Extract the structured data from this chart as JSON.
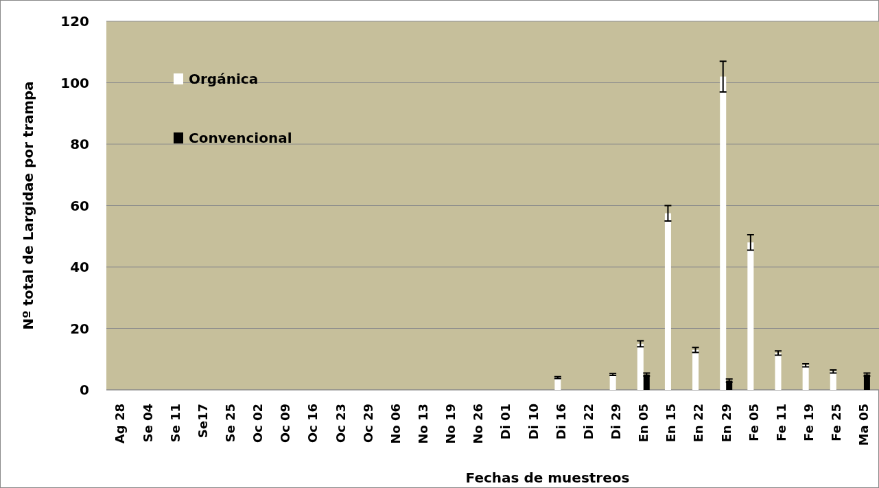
{
  "chart_data": {
    "type": "bar",
    "xlabel": "Fechas de muestreos",
    "ylabel": "Nº total de Largidae por trampa",
    "categories": [
      "Ag 28",
      "Se 04",
      "Se 11",
      "Se17",
      "Se 25",
      "Oc 02",
      "Oc 09",
      "Oc 16",
      "Oc 23",
      "Oc 29",
      "No 06",
      "No 13",
      "No 19",
      "No 26",
      "Di 01",
      "Di 10",
      "Di 16",
      "Di 22",
      "Di 29",
      "En 05",
      "En 15",
      "En 22",
      "En 29",
      "Fe 05",
      "Fe 11",
      "Fe 19",
      "Fe 25",
      "Ma 05"
    ],
    "series": [
      {
        "name": "Orgánica",
        "color": "#ffffff",
        "values": [
          0,
          0,
          0,
          0,
          0,
          0,
          0,
          0,
          0,
          0,
          0,
          0,
          0,
          0,
          0,
          0,
          4,
          0,
          5,
          15,
          57.5,
          13,
          102,
          48,
          12,
          8,
          6,
          0
        ],
        "errors": [
          null,
          null,
          null,
          null,
          null,
          null,
          null,
          null,
          null,
          null,
          null,
          null,
          null,
          null,
          null,
          null,
          0.3,
          null,
          0.3,
          1,
          2.5,
          0.8,
          5,
          2.5,
          0.7,
          0.5,
          0.5,
          null
        ]
      },
      {
        "name": "Convencional",
        "color": "#000000",
        "values": [
          0,
          0,
          0,
          0,
          0,
          0,
          0,
          0,
          0,
          0,
          0,
          0,
          0,
          0,
          0,
          0,
          0,
          0,
          0,
          5,
          0,
          0,
          3,
          0,
          0,
          0,
          0,
          5
        ],
        "errors": [
          null,
          null,
          null,
          null,
          null,
          null,
          null,
          null,
          null,
          null,
          null,
          null,
          null,
          null,
          null,
          null,
          null,
          null,
          null,
          0.5,
          null,
          null,
          0.5,
          null,
          null,
          null,
          null,
          0.5
        ]
      }
    ],
    "ylim": [
      0,
      120
    ],
    "yticks": [
      0,
      20,
      40,
      60,
      80,
      100,
      120
    ],
    "grid": "y",
    "legend": "top left"
  }
}
